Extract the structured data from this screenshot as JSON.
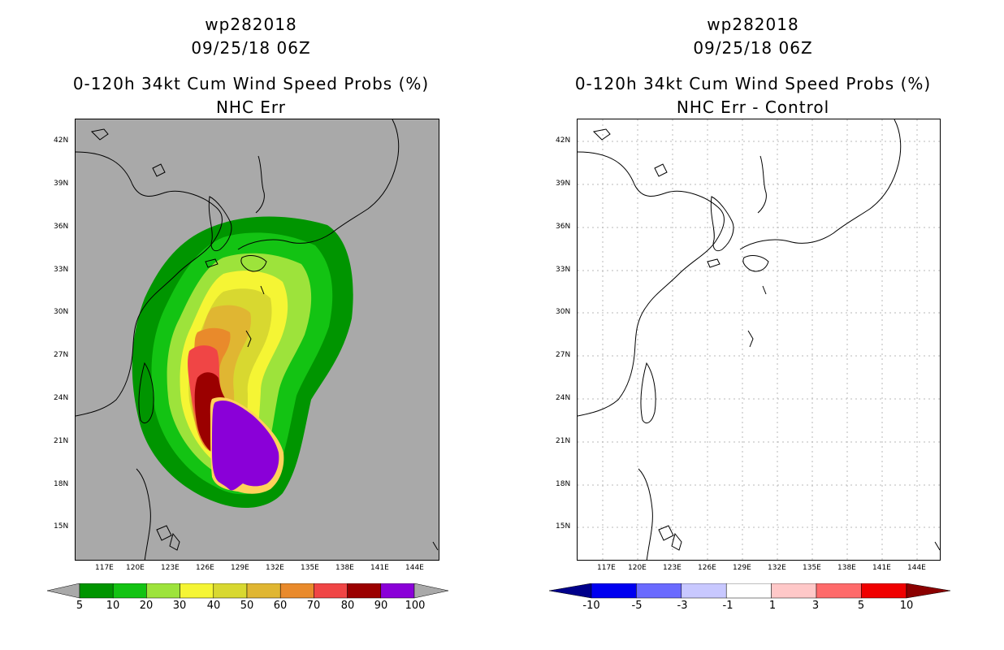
{
  "left_panel": {
    "title_line1": "wp282018",
    "title_line2": "09/25/18 06Z",
    "title_line3": "0-120h 34kt Cum Wind Speed Probs (%)",
    "title_line4": "NHC Err",
    "colorbar": {
      "labels": [
        "5",
        "10",
        "20",
        "30",
        "40",
        "50",
        "60",
        "70",
        "80",
        "90",
        "100"
      ],
      "colors": [
        "#009500",
        "#13c313",
        "#9de33b",
        "#f5f534",
        "#d8d830",
        "#e0b632",
        "#e98a2b",
        "#f04545",
        "#9b0000",
        "#8a00d8"
      ],
      "below_color": "#a9a9a9",
      "above_color": "#a9a9a9"
    },
    "background_color": "#a9a9a9"
  },
  "right_panel": {
    "title_line1": "wp282018",
    "title_line2": "09/25/18 06Z",
    "title_line3": "0-120h 34kt Cum Wind Speed Probs (%)",
    "title_line4": "NHC Err - Control",
    "colorbar": {
      "labels": [
        "-10",
        "-5",
        "-3",
        "-1",
        "1",
        "3",
        "5",
        "10"
      ],
      "colors": [
        "#0000f0",
        "#6a6aff",
        "#c8c8ff",
        "#ffffff",
        "#ffc8c8",
        "#ff6a6a",
        "#f00000"
      ],
      "below_color": "#00008b",
      "above_color": "#8b0000"
    },
    "background_color": "#ffffff"
  },
  "axes": {
    "lon_labels": [
      "117E",
      "120E",
      "123E",
      "126E",
      "129E",
      "132E",
      "135E",
      "138E",
      "141E",
      "144E"
    ],
    "lat_labels": [
      "42N",
      "39N",
      "36N",
      "33N",
      "30N",
      "27N",
      "24N",
      "21N",
      "18N",
      "15N"
    ]
  }
}
